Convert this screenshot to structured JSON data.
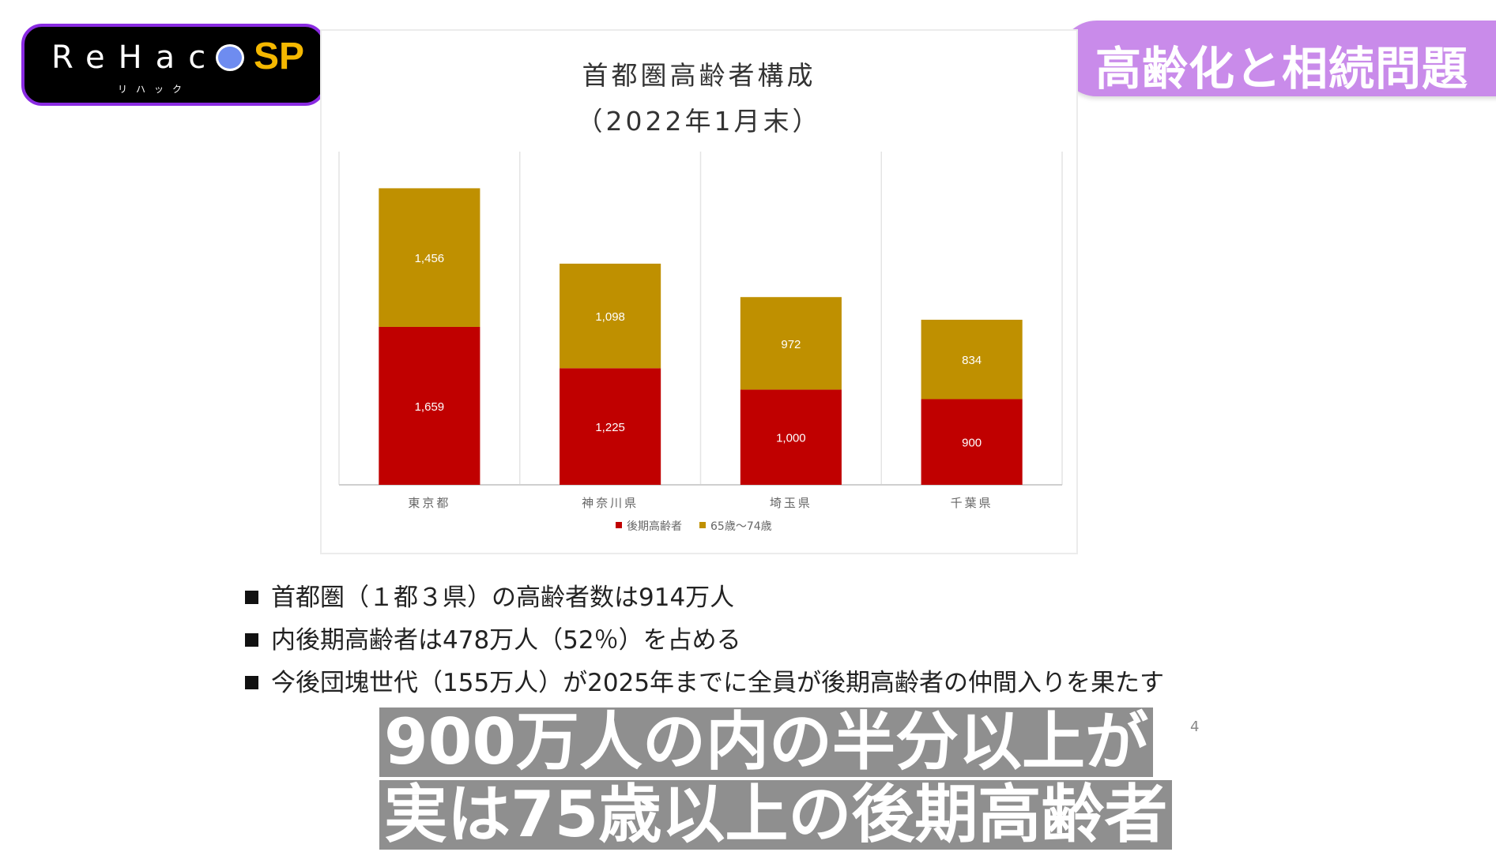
{
  "logo": {
    "main": "ReHac",
    "sp": "SP",
    "kana": "リハック"
  },
  "topic_banner": "高齢化と相続問題",
  "chart_data": {
    "type": "bar",
    "stacked": true,
    "title": "首都圏高齢者構成",
    "subtitle": "（2022年1月末）",
    "categories": [
      "東京都",
      "神奈川県",
      "埼玉県",
      "千葉県"
    ],
    "series": [
      {
        "name": "後期高齢者",
        "values": [
          1659,
          1225,
          1000,
          900
        ],
        "labels": [
          "1,659",
          "1,225",
          "1,000",
          "900"
        ],
        "color": "#c00000"
      },
      {
        "name": "65歳～74歳",
        "values": [
          1456,
          1098,
          972,
          834
        ],
        "labels": [
          "1,456",
          "1,098",
          "972",
          "834"
        ],
        "color": "#bf9000"
      }
    ],
    "ylim": [
      0,
      3500
    ],
    "xlabel": "",
    "ylabel": "",
    "legend": "bottom",
    "grid": "vertical separators"
  },
  "bullets": [
    "首都圏（１都３県）の高齢者数は914万人",
    "内後期高齢者は478万人（52％）を占める",
    "今後団塊世代（155万人）が2025年までに全員が後期高齢者の仲間入りを果たす"
  ],
  "page_number": "4",
  "caption": [
    "900万人の内の半分以上が",
    "実は75歳以上の後期高齢者"
  ]
}
